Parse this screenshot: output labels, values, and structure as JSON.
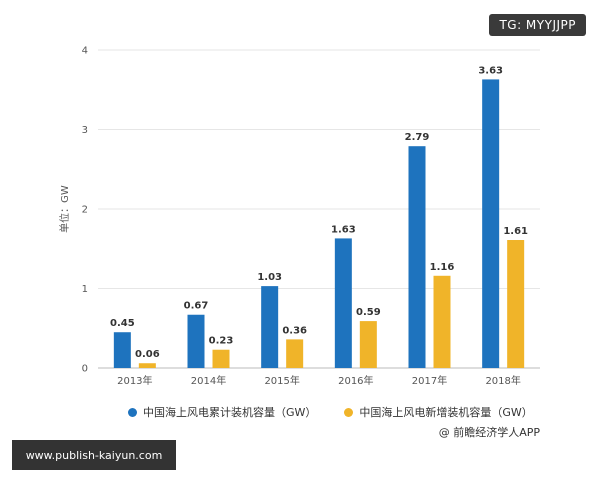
{
  "chart_data": {
    "type": "bar",
    "title": "",
    "xlabel": "",
    "ylabel": "单位：GW",
    "ylim": [
      0,
      4
    ],
    "yticks": [
      0,
      1,
      2,
      3,
      4
    ],
    "grid": true,
    "legend_position": "bottom",
    "categories": [
      "2013年",
      "2014年",
      "2015年",
      "2016年",
      "2017年",
      "2018年"
    ],
    "series": [
      {
        "name": "中国海上风电累计装机容量（GW）",
        "color": "#1e73be",
        "values": [
          0.45,
          0.67,
          1.03,
          1.63,
          2.79,
          3.63
        ],
        "labels": [
          "0.45",
          "0.67",
          "1.03",
          "1.63",
          "2.79",
          "3.63"
        ]
      },
      {
        "name": "中国海上风电新增装机容量（GW）",
        "color": "#f0b429",
        "values": [
          0.06,
          0.23,
          0.36,
          0.59,
          1.16,
          1.61
        ],
        "labels": [
          "0.06",
          "0.23",
          "0.36",
          "0.59",
          "1.16",
          "1.61"
        ]
      }
    ]
  },
  "source": "@ 前瞻经济学人APP",
  "tg_badge": "TG: MYYJJPP",
  "url_banner": "www.publish-kaiyun.com"
}
